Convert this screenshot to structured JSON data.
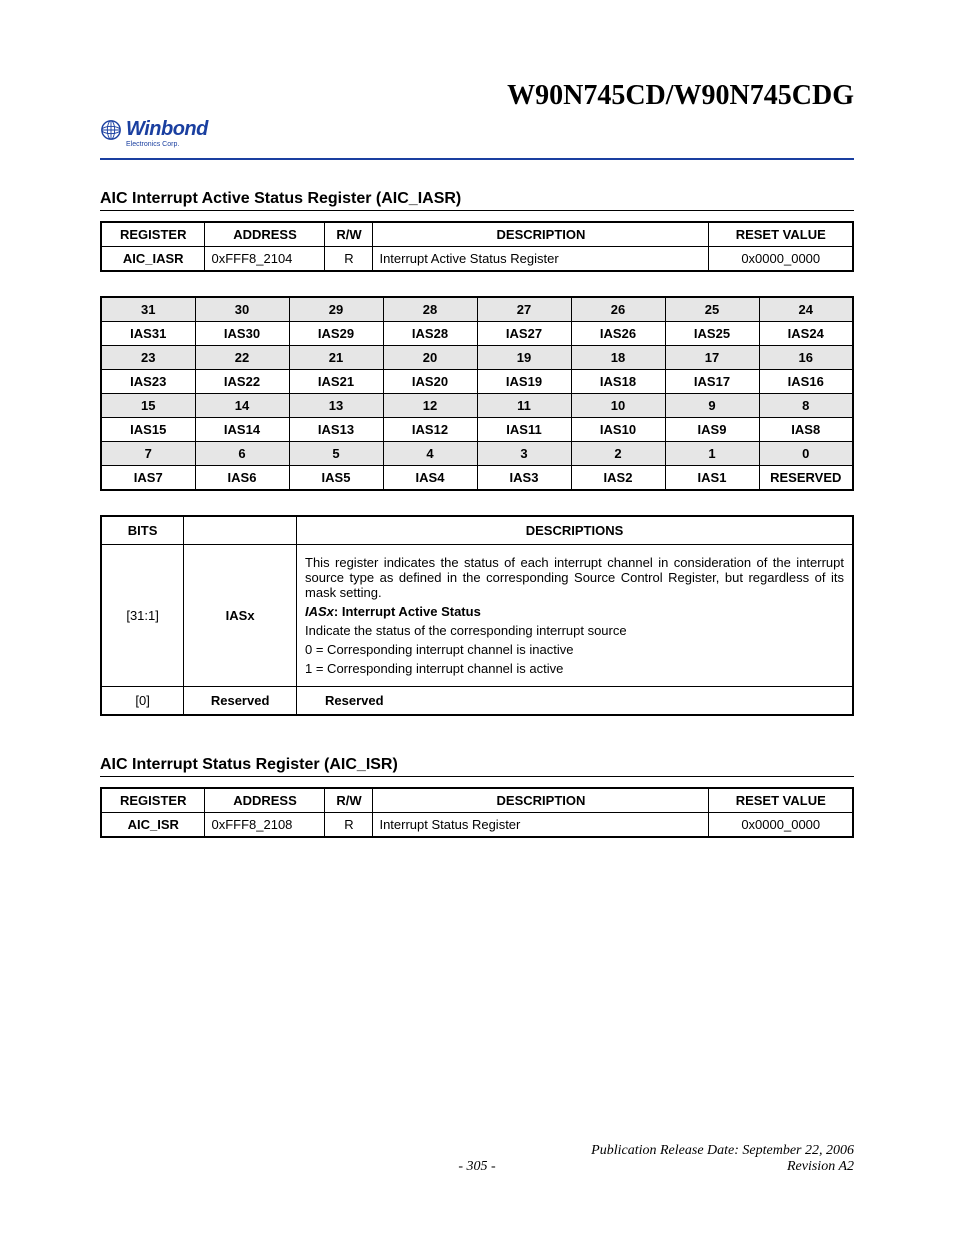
{
  "header": {
    "doc_title": "W90N745CD/W90N745CDG",
    "logo_text": "Winbond",
    "logo_sub": "Electronics Corp.",
    "logo_color": "#1a3fa0"
  },
  "section1": {
    "title": "AIC Interrupt Active Status Register (AIC_IASR)",
    "reg_header": [
      "REGISTER",
      "ADDRESS",
      "R/W",
      "DESCRIPTION",
      "RESET VALUE"
    ],
    "reg_row": [
      "AIC_IASR",
      "0xFFF8_2104",
      "R",
      "Interrupt Active Status Register",
      "0x0000_0000"
    ],
    "bit_numbers": [
      [
        "31",
        "30",
        "29",
        "28",
        "27",
        "26",
        "25",
        "24"
      ],
      [
        "23",
        "22",
        "21",
        "20",
        "19",
        "18",
        "17",
        "16"
      ],
      [
        "15",
        "14",
        "13",
        "12",
        "11",
        "10",
        "9",
        "8"
      ],
      [
        "7",
        "6",
        "5",
        "4",
        "3",
        "2",
        "1",
        "0"
      ]
    ],
    "bit_names": [
      [
        "IAS31",
        "IAS30",
        "IAS29",
        "IAS28",
        "IAS27",
        "IAS26",
        "IAS25",
        "IAS24"
      ],
      [
        "IAS23",
        "IAS22",
        "IAS21",
        "IAS20",
        "IAS19",
        "IAS18",
        "IAS17",
        "IAS16"
      ],
      [
        "IAS15",
        "IAS14",
        "IAS13",
        "IAS12",
        "IAS11",
        "IAS10",
        "IAS9",
        "IAS8"
      ],
      [
        "IAS7",
        "IAS6",
        "IAS5",
        "IAS4",
        "IAS3",
        "IAS2",
        "IAS1",
        "RESERVED"
      ]
    ],
    "desc_header": [
      "BITS",
      "",
      "DESCRIPTIONS"
    ],
    "desc_rows": [
      {
        "bits": "[31:1]",
        "name": "IASx",
        "para1": "This register indicates the status of each interrupt channel in consideration of the interrupt source type as defined in the corresponding Source Control Register, but regardless of its mask setting.",
        "bold_prefix": "IASx",
        "bold_rest": ": Interrupt Active Status",
        "line1": "Indicate the status of the corresponding interrupt source",
        "line2": "0 = Corresponding interrupt channel is inactive",
        "line3": "1 = Corresponding interrupt channel is active"
      },
      {
        "bits": "[0]",
        "name": "Reserved",
        "text": "Reserved"
      }
    ]
  },
  "section2": {
    "title": "AIC Interrupt Status Register (AIC_ISR)",
    "reg_header": [
      "REGISTER",
      "ADDRESS",
      "R/W",
      "DESCRIPTION",
      "RESET VALUE"
    ],
    "reg_row": [
      "AIC_ISR",
      "0xFFF8_2108",
      "R",
      "Interrupt Status Register",
      "0x0000_0000"
    ]
  },
  "footer": {
    "pub": "Publication Release Date: September 22, 2006",
    "page": "- 305 -",
    "rev": "Revision A2"
  },
  "colors": {
    "grid_bg": "#e6e6e6",
    "text": "#000000",
    "border": "#000000"
  }
}
